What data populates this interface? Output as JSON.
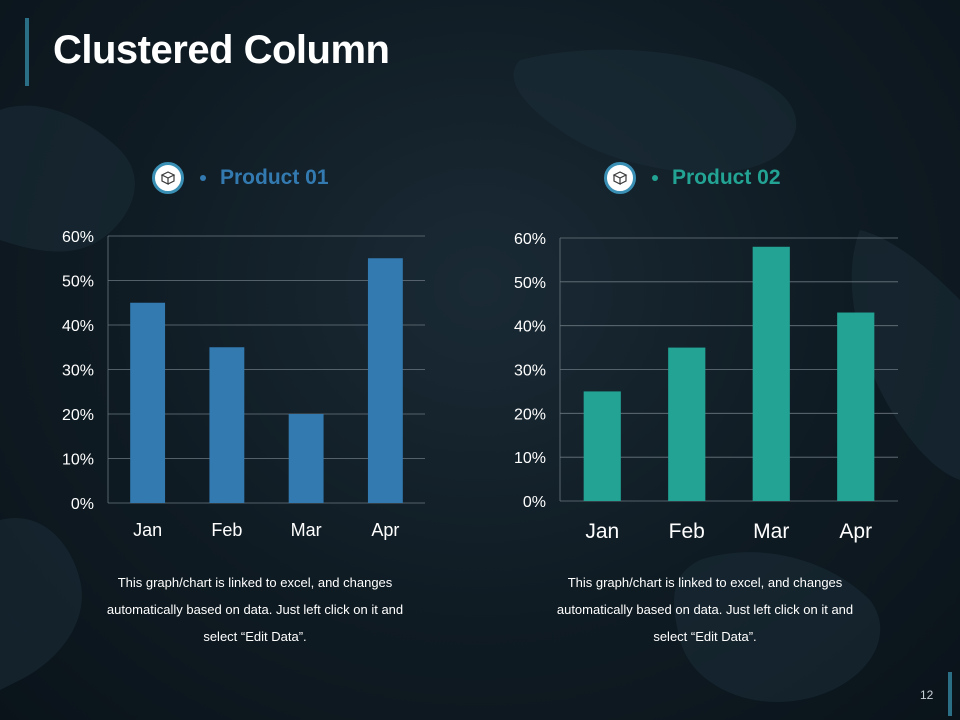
{
  "slide": {
    "title": "Clustered Column",
    "page_number": "12",
    "accent": "#2a6f86"
  },
  "panels": [
    {
      "icon": "box-icon",
      "series_name": "Product 01",
      "color": "#337ab1",
      "caption_lines": [
        "This graph/chart is linked to excel, and changes",
        "automatically based on data. Just left click on it and",
        "select “Edit Data”."
      ]
    },
    {
      "icon": "box-icon",
      "series_name": "Product 02",
      "color": "#22a394",
      "caption_lines": [
        "This graph/chart is linked to excel, and changes",
        "automatically based on data. Just left click on it and",
        "select “Edit Data”."
      ]
    }
  ],
  "chart_data": [
    {
      "type": "bar",
      "categories": [
        "Jan",
        "Feb",
        "Mar",
        "Apr"
      ],
      "series": [
        {
          "name": "Product 01",
          "values": [
            45,
            35,
            20,
            55
          ],
          "color": "#337ab1"
        }
      ],
      "yticks": [
        "0%",
        "10%",
        "20%",
        "30%",
        "40%",
        "50%",
        "60%"
      ],
      "ylim": [
        0,
        60
      ],
      "grid": true,
      "legend": "top"
    },
    {
      "type": "bar",
      "categories": [
        "Jan",
        "Feb",
        "Mar",
        "Apr"
      ],
      "series": [
        {
          "name": "Product 02",
          "values": [
            25,
            35,
            58,
            43
          ],
          "color": "#22a394"
        }
      ],
      "yticks": [
        "0%",
        "10%",
        "20%",
        "30%",
        "40%",
        "50%",
        "60%"
      ],
      "ylim": [
        0,
        60
      ],
      "grid": true,
      "legend": "top"
    }
  ]
}
